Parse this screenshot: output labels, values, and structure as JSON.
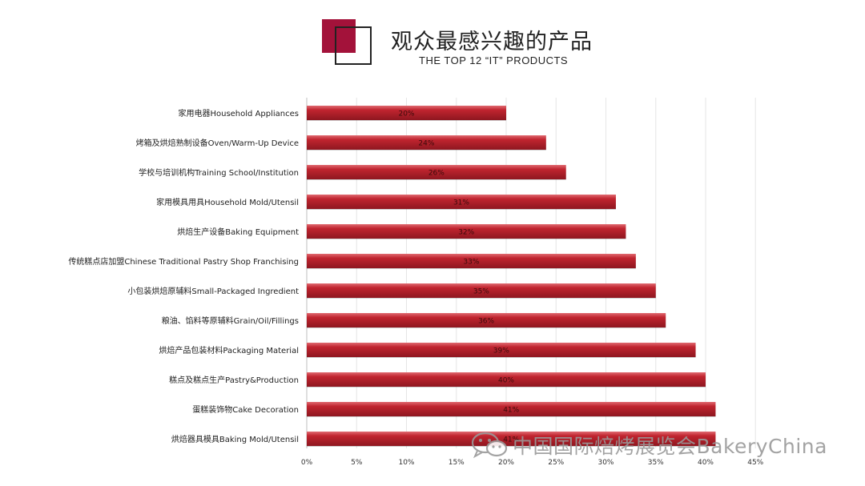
{
  "header": {
    "title": "观众最感兴趣的产品",
    "subtitle": "THE TOP 12 “IT” PRODUCTS"
  },
  "watermark": {
    "text": "中国国际焙烤展览会BakeryChina",
    "icon": "wechat-icon"
  },
  "colors": {
    "bar": "#c0242f",
    "bar_highlight": "#e06a70",
    "bar_shadow": "#8e1720",
    "accent": "#a3123a"
  },
  "chart_data": {
    "type": "bar",
    "orientation": "horizontal",
    "categories": [
      "家用电器Household Appliances",
      "烤箱及烘焙熟制设备Oven/Warm-Up Device",
      "学校与培训机构Training School/Institution",
      "家用模具用具Household Mold/Utensil",
      "烘焙生产设备Baking Equipment",
      "传统糕点店加盟Chinese Traditional Pastry Shop Franchising",
      "小包装烘焙原辅料Small-Packaged Ingredient",
      "粮油、馅料等原辅料Grain/Oil/Fillings",
      "烘焙产品包装材料Packaging Material",
      "糕点及糕点生产Pastry&Production",
      "蛋糕装饰物Cake Decoration",
      "烘焙器具模具Baking Mold/Utensil"
    ],
    "values": [
      20,
      24,
      26,
      31,
      32,
      33,
      35,
      36,
      39,
      40,
      41,
      41
    ],
    "data_labels": [
      "20%",
      "24%",
      "26%",
      "31%",
      "32%",
      "33%",
      "35%",
      "36%",
      "39%",
      "40%",
      "41%",
      "41%"
    ],
    "xlim": [
      0,
      45
    ],
    "xticks": [
      0,
      5,
      10,
      15,
      20,
      25,
      30,
      35,
      40,
      45
    ],
    "xtick_labels": [
      "0%",
      "5%",
      "10%",
      "15%",
      "20%",
      "25%",
      "30%",
      "35%",
      "40%",
      "45%"
    ],
    "grid": "vertical",
    "legend": "none"
  }
}
